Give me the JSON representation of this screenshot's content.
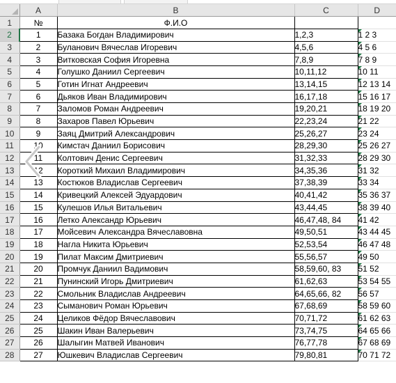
{
  "columns": [
    "A",
    "B",
    "C",
    "D"
  ],
  "header": {
    "num": "№",
    "fio": "Ф.И.О",
    "c": "",
    "d": ""
  },
  "rows": [
    {
      "r": "2",
      "n": "1",
      "name": "Базака Богдан Владимирович",
      "c": "1,2,3",
      "d": "1 2 3"
    },
    {
      "r": "3",
      "n": "2",
      "name": "Буланович Вячеслав Игоревич",
      "c": "4,5,6",
      "d": "4 5 6"
    },
    {
      "r": "4",
      "n": "3",
      "name": "Витковская София Игоревна",
      "c": "7,8,9",
      "d": "7 8 9"
    },
    {
      "r": "5",
      "n": "4",
      "name": "Голушко Даниил Сергеевич",
      "c": "10,11,12",
      "d": "10 11"
    },
    {
      "r": "6",
      "n": "5",
      "name": "Готин Игнат Андреевич",
      "c": "13,14,15",
      "d": "12 13 14"
    },
    {
      "r": "7",
      "n": "6",
      "name": "Дьяков Иван Владимирович",
      "c": "16,17,18",
      "d": "15 16 17"
    },
    {
      "r": "8",
      "n": "7",
      "name": "Заломов Роман Андреевич",
      "c": "19,20,21",
      "d": "18 19 20"
    },
    {
      "r": "9",
      "n": "8",
      "name": "Захаров Павел Юрьевич",
      "c": "22,23,24",
      "d": "21 22"
    },
    {
      "r": "10",
      "n": "9",
      "name": "Заяц Дмитрий Александрович",
      "c": "25,26,27",
      "d": "23 24"
    },
    {
      "r": "11",
      "n": "10",
      "name": "Кимстач Даниил Борисович",
      "c": "28,29,30",
      "d": "25 26 27"
    },
    {
      "r": "12",
      "n": "11",
      "name": "Колтович Денис Сергеевич",
      "c": "31,32,33",
      "d": "28 29 30"
    },
    {
      "r": "13",
      "n": "12",
      "name": "Короткий Михаил Владимирович",
      "c": "34,35,36",
      "d": "31 32"
    },
    {
      "r": "14",
      "n": "13",
      "name": "Костюков Владислав Сергеевич",
      "c": "37,38,39",
      "d": "33 34"
    },
    {
      "r": "15",
      "n": "14",
      "name": "Кривецкий Алексей Эдуардович",
      "c": "40,41,42",
      "d": "35 36 37"
    },
    {
      "r": "16",
      "n": "15",
      "name": "Кулешов Илья Витальевич",
      "c": "43,44,45",
      "d": "38 39 40"
    },
    {
      "r": "17",
      "n": "16",
      "name": "Летко Александр Юрьевич",
      "c": "46,47,48, 84",
      "d": "41 42"
    },
    {
      "r": "18",
      "n": "17",
      "name": "Мойсевич Александра Вячеславовна",
      "c": "49,50,51",
      "d": "43 44 45"
    },
    {
      "r": "19",
      "n": "18",
      "name": "Нагла Никита Юрьевич",
      "c": "52,53,54",
      "d": "46 47 48"
    },
    {
      "r": "20",
      "n": "19",
      "name": "Пилат Максим Дмитриевич",
      "c": "55,56,57",
      "d": "49 50"
    },
    {
      "r": "21",
      "n": "20",
      "name": "Промчук Даниил Вадимович",
      "c": "58,59,60, 83",
      "d": "51 52"
    },
    {
      "r": "22",
      "n": "21",
      "name": "Пунинский Игорь Дмитриевич",
      "c": "61,62,63",
      "d": "53 54 55"
    },
    {
      "r": "23",
      "n": "22",
      "name": "Смольник Владислав Андреевич",
      "c": "64,65,66, 82",
      "d": "56 57"
    },
    {
      "r": "24",
      "n": "23",
      "name": "Сыманович Роман Юрьевич",
      "c": "67,68,69",
      "d": "58 59 60"
    },
    {
      "r": "25",
      "n": "24",
      "name": "Целиков Фёдор Вячеславович",
      "c": "70,71,72",
      "d": "61 62 63"
    },
    {
      "r": "26",
      "n": "25",
      "name": "Шакин Иван Валерьевич",
      "c": "73,74,75",
      "d": "64 65 66"
    },
    {
      "r": "27",
      "n": "26",
      "name": "Шалыгин Матвей Иванович",
      "c": "76,77,78",
      "d": "67 68 69"
    },
    {
      "r": "28",
      "n": "27",
      "name": "Юшкевич Владислав Сергеевич",
      "c": "79,80,81",
      "d": "70 71 72"
    }
  ],
  "selected_row": "2",
  "colors": {
    "accent": "#217346",
    "flag": "#1e7b45",
    "header_bg": "#e6e6e6"
  }
}
